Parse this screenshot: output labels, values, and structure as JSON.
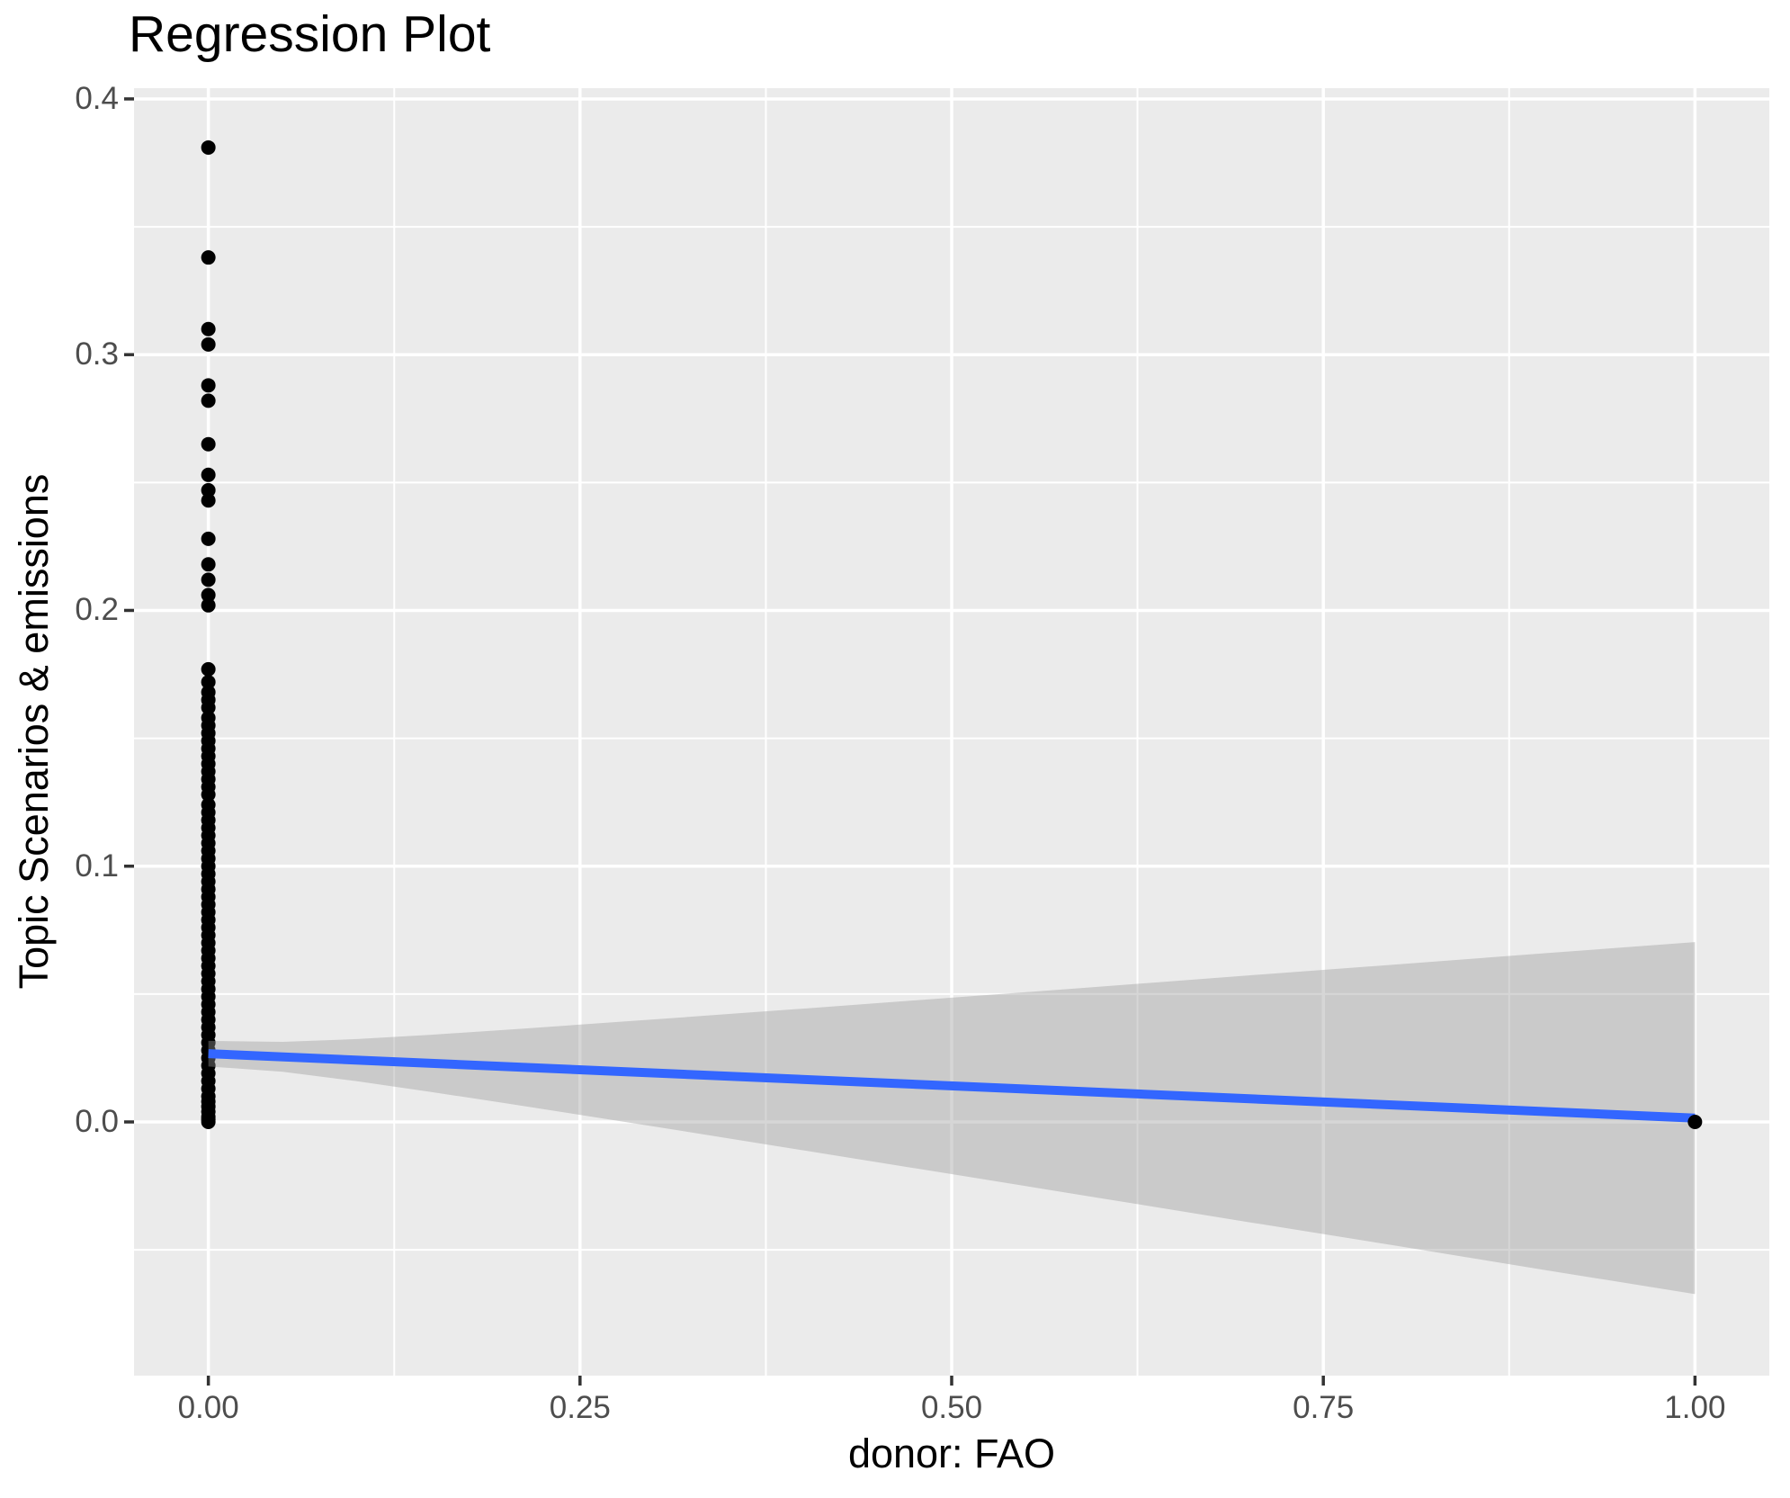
{
  "chart_data": {
    "type": "scatter",
    "title": "Regression Plot",
    "xlabel": "donor: FAO",
    "ylabel": "Topic Scenarios & emissions",
    "xlim": [
      -0.05,
      1.05
    ],
    "ylim": [
      -0.0992,
      0.4042
    ],
    "x_ticks": [
      0.0,
      0.25,
      0.5,
      0.75,
      1.0
    ],
    "x_tick_labels": [
      "0.00",
      "0.25",
      "0.50",
      "0.75",
      "1.00"
    ],
    "y_ticks": [
      0.0,
      0.1,
      0.2,
      0.3,
      0.4
    ],
    "y_tick_labels": [
      "0.0",
      "0.1",
      "0.2",
      "0.3",
      "0.4"
    ],
    "grid": {
      "major": true,
      "minor": true,
      "legend": "none"
    },
    "points_x0_y": [
      0.381,
      0.338,
      0.31,
      0.304,
      0.288,
      0.282,
      0.265,
      0.253,
      0.247,
      0.243,
      0.228,
      0.218,
      0.212,
      0.206,
      0.202,
      0.177,
      0.172,
      0.168,
      0.165,
      0.162,
      0.158,
      0.155,
      0.152,
      0.149,
      0.146,
      0.143,
      0.14,
      0.137,
      0.134,
      0.131,
      0.128,
      0.124,
      0.121,
      0.118,
      0.115,
      0.112,
      0.109,
      0.106,
      0.103,
      0.1,
      0.097,
      0.094,
      0.091,
      0.088,
      0.085,
      0.082,
      0.079,
      0.076,
      0.073,
      0.07,
      0.067,
      0.064,
      0.061,
      0.058,
      0.055,
      0.052,
      0.049,
      0.046,
      0.043,
      0.04,
      0.037,
      0.034,
      0.031,
      0.028,
      0.025,
      0.022,
      0.019,
      0.016,
      0.013,
      0.01,
      0.008,
      0.006,
      0.004,
      0.002,
      0.001,
      0.0
    ],
    "point_x1": [
      1.0,
      0.0
    ],
    "regression_line": {
      "x": [
        0.0,
        1.0
      ],
      "y": [
        0.0267,
        0.0015
      ]
    },
    "confidence_band": {
      "x": [
        0.0,
        0.05,
        0.1,
        0.15,
        0.2,
        0.3,
        0.4,
        0.5,
        0.6,
        0.7,
        0.8,
        0.9,
        1.0
      ],
      "upper": [
        0.0317,
        0.0313,
        0.0324,
        0.0341,
        0.036,
        0.0401,
        0.0443,
        0.0486,
        0.0529,
        0.0573,
        0.0616,
        0.066,
        0.0703
      ],
      "lower": [
        0.0217,
        0.0196,
        0.0159,
        0.0117,
        0.0073,
        -0.0018,
        -0.0111,
        -0.0204,
        -0.0298,
        -0.0392,
        -0.0485,
        -0.058,
        -0.0673
      ]
    },
    "colors": {
      "panel_background": "#EBEBEB",
      "gridline": "#FFFFFF",
      "point": "#000000",
      "regression_line": "#3366FF",
      "confidence_band_fill": "#999999",
      "confidence_band_opacity": 0.4,
      "tick_mark": "#333333",
      "tick_label_text": "#4D4D4D",
      "title_text": "#000000"
    }
  }
}
